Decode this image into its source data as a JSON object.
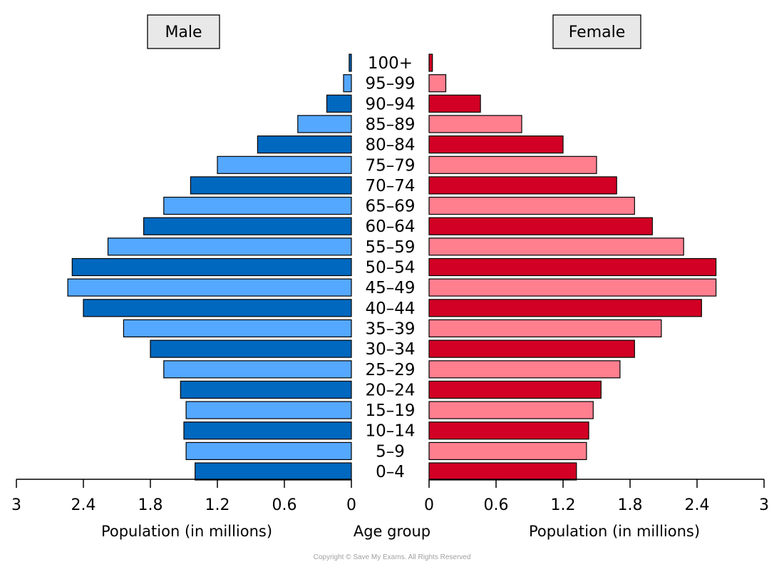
{
  "legend": {
    "male": "Male",
    "female": "Female"
  },
  "copyright": "Copyright © Save My Exams. All Rights Reserved",
  "colors": {
    "male_dark": "#0068be",
    "male_light": "#55a8ff",
    "female_dark": "#d10024",
    "female_light": "#ff7f8f"
  },
  "chart_data": {
    "type": "bar",
    "orientation": "horizontal-population-pyramid",
    "categories": [
      "100+",
      "95–99",
      "90–94",
      "85–89",
      "80–84",
      "75–79",
      "70–74",
      "65–69",
      "60–64",
      "55–59",
      "50–54",
      "45–49",
      "40–44",
      "35–39",
      "30–34",
      "25–29",
      "20–24",
      "15–19",
      "10–14",
      "5–9",
      "0–4"
    ],
    "series": [
      {
        "name": "Male",
        "values": [
          0.02,
          0.07,
          0.22,
          0.48,
          0.84,
          1.2,
          1.44,
          1.68,
          1.86,
          2.18,
          2.5,
          2.54,
          2.4,
          2.04,
          1.8,
          1.68,
          1.53,
          1.48,
          1.5,
          1.48,
          1.4
        ]
      },
      {
        "name": "Female",
        "values": [
          0.03,
          0.15,
          0.46,
          0.83,
          1.2,
          1.5,
          1.68,
          1.84,
          2.0,
          2.28,
          2.57,
          2.57,
          2.44,
          2.08,
          1.84,
          1.71,
          1.54,
          1.47,
          1.43,
          1.41,
          1.32
        ]
      }
    ],
    "xlim": [
      0,
      3
    ],
    "male_ticks": [
      "3",
      "2.4",
      "1.8",
      "1.2",
      "0.6",
      "0"
    ],
    "female_ticks": [
      "0",
      "0.6",
      "1.2",
      "1.8",
      "2.4",
      "3"
    ],
    "tick_values": [
      0,
      0.6,
      1.2,
      1.8,
      2.4,
      3
    ],
    "xlabel_left": "Population (in millions)",
    "xlabel_center": "Age group",
    "xlabel_right": "Population (in millions)",
    "legend_position": "top"
  }
}
